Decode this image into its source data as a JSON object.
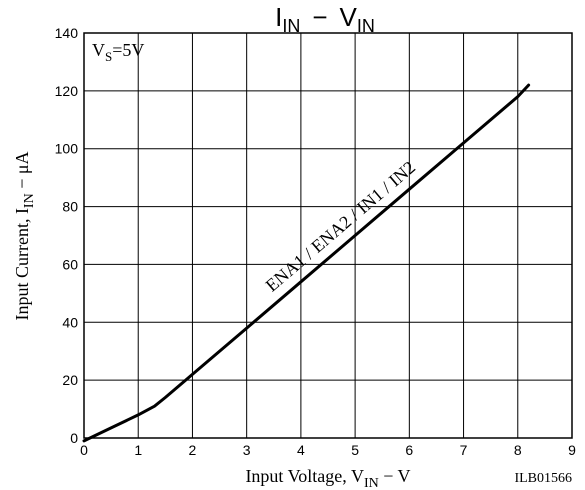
{
  "chart_data": {
    "type": "line",
    "title": "IIN − VIN",
    "title_parts": {
      "main1": "I",
      "sub1": "IN",
      "dash": "−",
      "main2": "V",
      "sub2": "IN"
    },
    "xlabel": "Input Voltage, VIN − V",
    "xlabel_parts": {
      "prefix": "Input Voltage,  V",
      "sub": "IN",
      "suffix": " − V"
    },
    "ylabel": "Input Current, IIN − μA",
    "ylabel_parts": {
      "prefix": "Input Current, I",
      "sub": "IN",
      "suffix": " − μA"
    },
    "xlim": [
      0,
      9
    ],
    "ylim": [
      0,
      140
    ],
    "x_ticks": [
      0,
      1,
      2,
      3,
      4,
      5,
      6,
      7,
      8,
      9
    ],
    "y_ticks": [
      0,
      20,
      40,
      60,
      80,
      100,
      120,
      140
    ],
    "grid": true,
    "series": [
      {
        "name": "ENA1 / ENA2 / IN1 / IN2",
        "x": [
          0,
          0.5,
          1.0,
          1.3,
          1.5,
          2.0,
          3.0,
          4.0,
          5.0,
          6.0,
          7.0,
          8.0,
          8.2
        ],
        "y": [
          -1,
          3.5,
          8,
          11,
          14,
          22,
          38,
          54,
          70,
          86,
          102,
          118,
          122
        ]
      }
    ],
    "annotations": {
      "condition_parts": {
        "prefix": "V",
        "sub": "S",
        "suffix": "=5V"
      },
      "line_label": "ENA1 / ENA2 / IN1 / IN2",
      "figure_code": "ILB01566"
    }
  }
}
